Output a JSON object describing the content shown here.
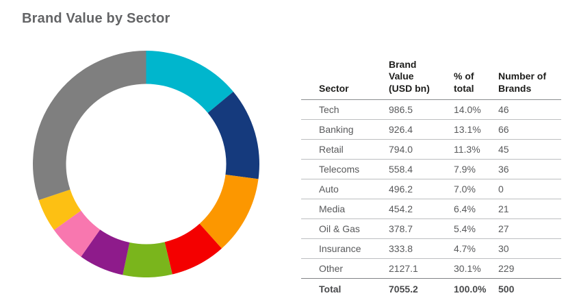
{
  "title": "Brand Value by Sector",
  "chart_data": {
    "type": "pie",
    "subtype": "donut",
    "title": "Brand Value by Sector",
    "start_angle_deg": 0,
    "direction": "clockwise",
    "legend_position": "table-right",
    "categories": [
      "Tech",
      "Banking",
      "Retail",
      "Telecoms",
      "Auto",
      "Media",
      "Oil & Gas",
      "Insurance",
      "Other"
    ],
    "values": [
      986.5,
      926.4,
      794.0,
      558.4,
      496.2,
      454.2,
      378.7,
      333.8,
      2127.1
    ],
    "percent_labels": [
      "14.0%",
      "13.1%",
      "11.3%",
      "7.9%",
      "7.0%",
      "6.4%",
      "5.4%",
      "4.7%",
      "30.1%"
    ],
    "colors": [
      "#00b6cd",
      "#153a7d",
      "#fc9700",
      "#f40000",
      "#7ab51c",
      "#8e1b8b",
      "#f877af",
      "#fdc013",
      "#7f7f7f"
    ],
    "total_value": 7055.2
  },
  "table": {
    "columns": {
      "sector": "Sector",
      "brand_value": "Brand Value (USD bn)",
      "pct": "% of total",
      "brands": "Number of Brands"
    },
    "rows": [
      {
        "sector": "Tech",
        "value": "986.5",
        "pct": "14.0%",
        "brands": "46",
        "color": "#00b6cd"
      },
      {
        "sector": "Banking",
        "value": "926.4",
        "pct": "13.1%",
        "brands": "66",
        "color": "#153a7d"
      },
      {
        "sector": "Retail",
        "value": "794.0",
        "pct": "11.3%",
        "brands": "45",
        "color": "#fc9700"
      },
      {
        "sector": "Telecoms",
        "value": "558.4",
        "pct": "7.9%",
        "brands": "36",
        "color": "#f40000"
      },
      {
        "sector": "Auto",
        "value": "496.2",
        "pct": "7.0%",
        "brands": "0",
        "color": "#7ab51c"
      },
      {
        "sector": "Media",
        "value": "454.2",
        "pct": "6.4%",
        "brands": "21",
        "color": "#8e1b8b"
      },
      {
        "sector": "Oil & Gas",
        "value": "378.7",
        "pct": "5.4%",
        "brands": "27",
        "color": "#f877af"
      },
      {
        "sector": "Insurance",
        "value": "333.8",
        "pct": "4.7%",
        "brands": "30",
        "color": "#fdc013"
      },
      {
        "sector": "Other",
        "value": "2127.1",
        "pct": "30.1%",
        "brands": "229",
        "color": "#7f7f7f"
      }
    ],
    "total": {
      "label": "Total",
      "value": "7055.2",
      "pct": "100.0%",
      "brands": "500"
    }
  }
}
